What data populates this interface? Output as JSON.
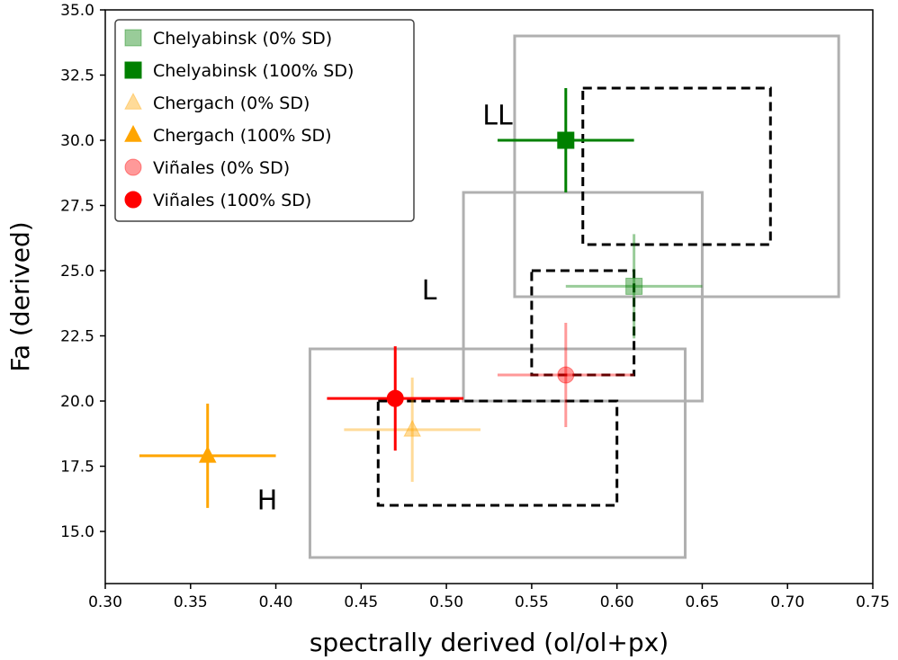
{
  "chart_data": {
    "type": "scatter",
    "xlabel": "spectrally derived (ol/ol+px)",
    "ylabel": "Fa (derived)",
    "xlim": [
      0.3,
      0.75
    ],
    "ylim": [
      13.0,
      35.0
    ],
    "xticks": [
      "0.30",
      "0.35",
      "0.40",
      "0.45",
      "0.50",
      "0.55",
      "0.60",
      "0.65",
      "0.70",
      "0.75"
    ],
    "yticks": [
      "15.0",
      "17.5",
      "20.0",
      "22.5",
      "25.0",
      "27.5",
      "30.0",
      "32.5",
      "35.0"
    ],
    "legend_position": "top-left",
    "grid": false,
    "series": [
      {
        "name": "Chelyabinsk (0% SD)",
        "marker": "square",
        "color": "#008000",
        "alpha": 0.4,
        "x": 0.61,
        "y": 24.4,
        "xerr": 0.04,
        "yerr": 2.0
      },
      {
        "name": "Chelyabinsk (100% SD)",
        "marker": "square",
        "color": "#008000",
        "alpha": 1.0,
        "x": 0.57,
        "y": 30.0,
        "xerr": 0.04,
        "yerr": 2.0
      },
      {
        "name": "Chergach (0% SD)",
        "marker": "triangle",
        "color": "#ffa500",
        "alpha": 0.4,
        "x": 0.48,
        "y": 18.9,
        "xerr": 0.04,
        "yerr": 2.0
      },
      {
        "name": "Chergach (100% SD)",
        "marker": "triangle",
        "color": "#ffa500",
        "alpha": 1.0,
        "x": 0.36,
        "y": 17.9,
        "xerr": 0.04,
        "yerr": 2.0
      },
      {
        "name": "Viñales (0% SD)",
        "marker": "circle",
        "color": "#ff0000",
        "alpha": 0.4,
        "x": 0.57,
        "y": 21.0,
        "xerr": 0.04,
        "yerr": 2.0
      },
      {
        "name": "Viñales (100% SD)",
        "marker": "circle",
        "color": "#ff0000",
        "alpha": 1.0,
        "x": 0.47,
        "y": 20.1,
        "xerr": 0.04,
        "yerr": 2.0
      }
    ],
    "regions": [
      {
        "label": "H",
        "x0": 0.42,
        "x1": 0.64,
        "y0": 14.0,
        "y1": 22.0,
        "style": "solid",
        "color": "#b0b0b0",
        "label_x": 0.395,
        "label_y": 15.85
      },
      {
        "label": "L",
        "x0": 0.51,
        "x1": 0.65,
        "y0": 20.0,
        "y1": 28.0,
        "style": "solid",
        "color": "#b0b0b0",
        "label_x": 0.49,
        "label_y": 23.9
      },
      {
        "label": "LL",
        "x0": 0.54,
        "x1": 0.73,
        "y0": 24.0,
        "y1": 34.0,
        "style": "solid",
        "color": "#b0b0b0",
        "label_x": 0.53,
        "label_y": 30.6
      },
      {
        "label": "",
        "x0": 0.46,
        "x1": 0.6,
        "y0": 16.0,
        "y1": 20.0,
        "style": "dashed",
        "color": "#000000"
      },
      {
        "label": "",
        "x0": 0.55,
        "x1": 0.61,
        "y0": 21.0,
        "y1": 25.0,
        "style": "dashed",
        "color": "#000000"
      },
      {
        "label": "",
        "x0": 0.58,
        "x1": 0.69,
        "y0": 26.0,
        "y1": 32.0,
        "style": "dashed",
        "color": "#000000"
      }
    ]
  }
}
